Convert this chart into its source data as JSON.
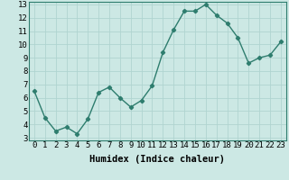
{
  "x": [
    0,
    1,
    2,
    3,
    4,
    5,
    6,
    7,
    8,
    9,
    10,
    11,
    12,
    13,
    14,
    15,
    16,
    17,
    18,
    19,
    20,
    21,
    22,
    23
  ],
  "y": [
    6.5,
    4.5,
    3.5,
    3.8,
    3.3,
    4.4,
    6.4,
    6.8,
    6.0,
    5.3,
    5.8,
    6.9,
    9.4,
    11.1,
    12.5,
    12.5,
    13.0,
    12.2,
    11.6,
    10.5,
    8.6,
    9.0,
    9.2,
    10.2
  ],
  "line_color": "#2e7d6e",
  "marker": "D",
  "marker_size": 2.2,
  "bg_color": "#cce8e4",
  "grid_color": "#b0d4d0",
  "xlabel": "Humidex (Indice chaleur)",
  "xlabel_fontsize": 7.5,
  "ylim": [
    3,
    13
  ],
  "xlim": [
    -0.5,
    23.5
  ],
  "yticks": [
    3,
    4,
    5,
    6,
    7,
    8,
    9,
    10,
    11,
    12,
    13
  ],
  "xticks": [
    0,
    1,
    2,
    3,
    4,
    5,
    6,
    7,
    8,
    9,
    10,
    11,
    12,
    13,
    14,
    15,
    16,
    17,
    18,
    19,
    20,
    21,
    22,
    23
  ],
  "tick_fontsize": 6.5,
  "spine_color": "#2e7d6e",
  "linewidth": 1.0
}
